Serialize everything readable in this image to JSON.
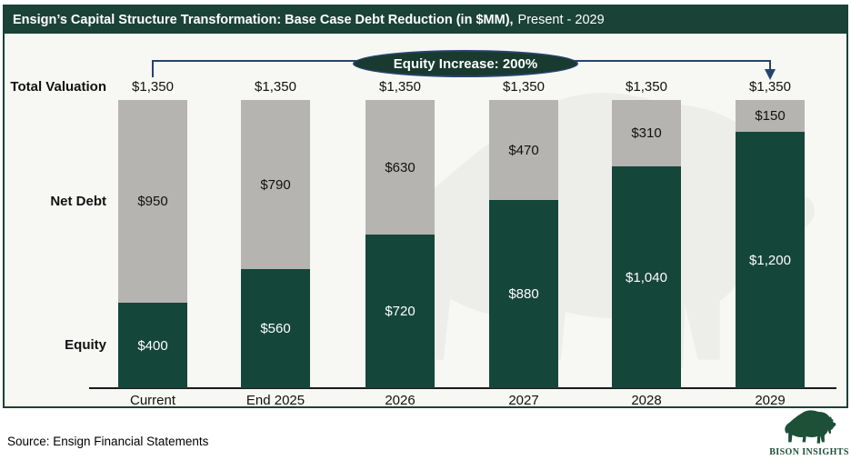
{
  "header": {
    "title_bold": "Ensign’s Capital Structure Transformation: Base Case Debt Reduction (in $MM),",
    "title_regular": "Present - 2029"
  },
  "annotation": {
    "label": "Equity Increase: 200%"
  },
  "row_labels": {
    "total": "Total Valuation",
    "debt": "Net Debt",
    "equity": "Equity"
  },
  "chart_data": {
    "type": "bar",
    "stacked": true,
    "title": "Ensign’s Capital Structure Transformation: Base Case Debt Reduction (in $MM), Present - 2029",
    "categories": [
      "Current",
      "End 2025",
      "2026",
      "2027",
      "2028",
      "2029"
    ],
    "series": [
      {
        "name": "Equity",
        "color": "#15463A",
        "values": [
          400,
          560,
          720,
          880,
          1040,
          1200
        ],
        "labels": [
          "$400",
          "$560",
          "$720",
          "$880",
          "$1,040",
          "$1,200"
        ]
      },
      {
        "name": "Net Debt",
        "color": "#B5B4B1",
        "values": [
          950,
          790,
          630,
          470,
          310,
          150
        ],
        "labels": [
          "$950",
          "$790",
          "$630",
          "$470",
          "$310",
          "$150"
        ]
      }
    ],
    "totals": [
      1350,
      1350,
      1350,
      1350,
      1350,
      1350
    ],
    "total_labels": [
      "$1,350",
      "$1,350",
      "$1,350",
      "$1,350",
      "$1,350",
      "$1,350"
    ],
    "ylim": [
      0,
      1350
    ],
    "annotation": "Equity Increase: 200%",
    "legend_position": "left-row-labels",
    "grid": false
  },
  "footer": {
    "source": "Source: Ensign Financial Statements",
    "logo_text": "BISON INSIGHTS"
  },
  "colors": {
    "header_bg": "#1B4237",
    "chart_bg": "#F7F7F3",
    "bar_green": "#15463A",
    "bar_gray": "#B5B4B1",
    "arrow_navy": "#26436F",
    "oval_bg": "#183A2F",
    "logo_green": "#1D5037",
    "watermark": "#EDEDE9"
  }
}
